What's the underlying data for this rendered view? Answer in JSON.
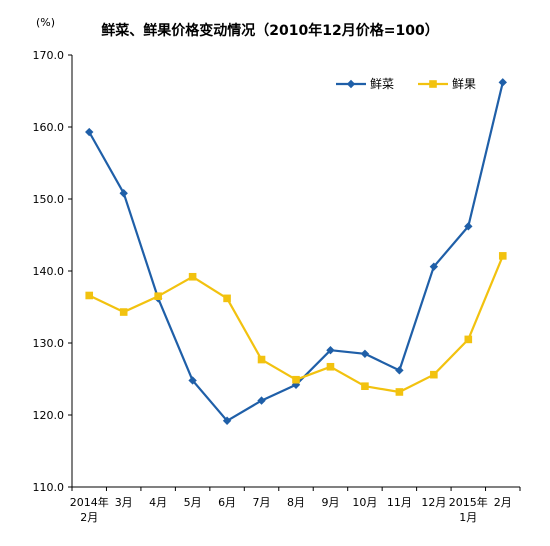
{
  "chart_data": {
    "type": "line",
    "title": "鲜菜、鲜果价格变动情况（2010年12月价格=100）",
    "unit_label": "(%)",
    "ylim": [
      110,
      170
    ],
    "yticks": [
      "110.0",
      "120.0",
      "130.0",
      "140.0",
      "150.0",
      "160.0",
      "170.0"
    ],
    "categories": [
      [
        "2014年",
        "2月"
      ],
      [
        "3月"
      ],
      [
        "4月"
      ],
      [
        "5月"
      ],
      [
        "6月"
      ],
      [
        "7月"
      ],
      [
        "8月"
      ],
      [
        "9月"
      ],
      [
        "10月"
      ],
      [
        "11月"
      ],
      [
        "12月"
      ],
      [
        "2015年",
        "1月"
      ],
      [
        "2月"
      ]
    ],
    "series": [
      {
        "name": "鲜菜",
        "color": "#1f5fa8",
        "marker": "diamond",
        "values": [
          159.3,
          150.8,
          136.2,
          124.8,
          119.2,
          122.0,
          124.2,
          129.0,
          128.5,
          126.2,
          140.6,
          146.2,
          166.2
        ]
      },
      {
        "name": "鲜果",
        "color": "#f2c20f",
        "marker": "square",
        "values": [
          136.6,
          134.3,
          136.5,
          139.2,
          136.2,
          127.7,
          124.9,
          126.7,
          124.0,
          123.2,
          125.6,
          130.5,
          142.1
        ]
      }
    ],
    "legend_position": "top-right",
    "grid": false
  }
}
